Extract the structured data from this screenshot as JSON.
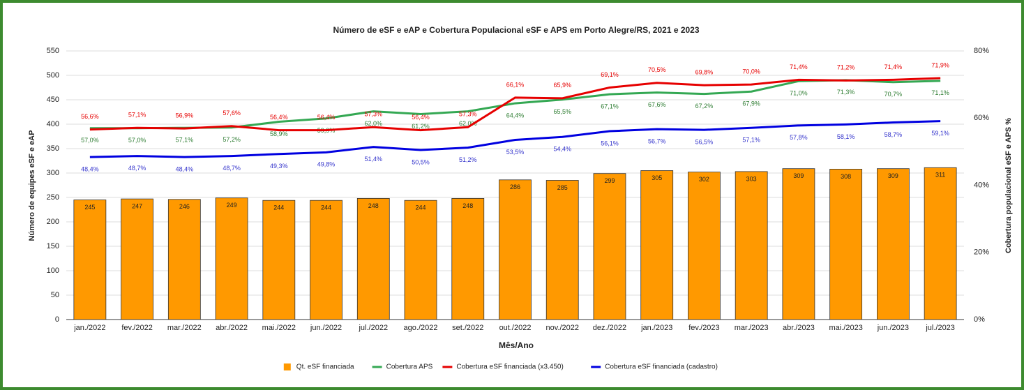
{
  "chart_data": {
    "type": "combo",
    "title": "Número de eSF e eAP e Cobertura Populacional eSF e APS em Porto Alegre/RS, 2021 e 2023",
    "x_label": "Mês/Ano",
    "y_label": "Número de equipes eSF e eAP",
    "y2_label": "Cobertura populacional eSF e APS %",
    "categories": [
      "jan./2022",
      "fev./2022",
      "mar./2022",
      "abr./2022",
      "mai./2022",
      "jun./2022",
      "jul./2022",
      "ago./2022",
      "set./2022",
      "out./2022",
      "nov./2022",
      "dez./2022",
      "jan./2023",
      "fev./2023",
      "mar./2023",
      "abr./2023",
      "mai./2023",
      "jun./2023",
      "jul./2023"
    ],
    "ylim": [
      0,
      550
    ],
    "yticks": [
      0,
      50,
      100,
      150,
      200,
      250,
      300,
      350,
      400,
      450,
      500,
      550
    ],
    "y2lim": [
      0,
      80
    ],
    "y2ticks": [
      {
        "value": 0,
        "label": "0%"
      },
      {
        "value": 20,
        "label": "20%"
      },
      {
        "value": 40,
        "label": "40%"
      },
      {
        "value": 60,
        "label": "60%"
      },
      {
        "value": 80,
        "label": "80%"
      }
    ],
    "grid": true,
    "legend": "bottom",
    "series": [
      {
        "name": "Qt. eSF financiada",
        "type": "bar",
        "color": "#ff9900",
        "values": [
          245,
          247,
          246,
          249,
          244,
          244,
          248,
          244,
          248,
          286,
          285,
          299,
          305,
          302,
          303,
          309,
          308,
          309,
          311
        ]
      },
      {
        "name": "Cobertura APS",
        "type": "line",
        "axis": "y2",
        "color": "#34a853",
        "values": [
          57.0,
          57.0,
          57.1,
          57.2,
          58.9,
          59.9,
          62.0,
          61.2,
          62.0,
          64.4,
          65.5,
          67.1,
          67.6,
          67.2,
          67.9,
          71.0,
          71.3,
          70.7,
          71.1
        ],
        "value_labels": [
          "57,0%",
          "57,0%",
          "57,1%",
          "57,2%",
          "58,9%",
          "59,9%",
          "62,0%",
          "61,2%",
          "62,0%",
          "64,4%",
          "65,5%",
          "67,1%",
          "67,6%",
          "67,2%",
          "67,9%",
          "71,0%",
          "71,3%",
          "70,7%",
          "71,1%"
        ]
      },
      {
        "name": "Cobertura eSF financiada (x3.450)",
        "type": "line",
        "axis": "y2",
        "color": "#e60000",
        "values": [
          56.6,
          57.1,
          56.9,
          57.6,
          56.4,
          56.4,
          57.3,
          56.4,
          57.3,
          66.1,
          65.9,
          69.1,
          70.5,
          69.8,
          70.0,
          71.4,
          71.2,
          71.4,
          71.9
        ],
        "value_labels": [
          "56,6%",
          "57,1%",
          "56,9%",
          "57,6%",
          "56,4%",
          "56,4%",
          "57,3%",
          "56,4%",
          "57,3%",
          "66,1%",
          "65,9%",
          "69,1%",
          "70,5%",
          "69,8%",
          "70,0%",
          "71,4%",
          "71,2%",
          "71,4%",
          "71,9%"
        ]
      },
      {
        "name": "Cobertura eSF financiada (cadastro)",
        "type": "line",
        "axis": "y2",
        "color": "#0000e0",
        "values": [
          48.4,
          48.7,
          48.4,
          48.7,
          49.3,
          49.8,
          51.4,
          50.5,
          51.2,
          53.5,
          54.4,
          56.1,
          56.7,
          56.5,
          57.1,
          57.8,
          58.1,
          58.7,
          59.1
        ],
        "value_labels": [
          "48,4%",
          "48,7%",
          "48,4%",
          "48,7%",
          "49,3%",
          "49,8%",
          "51,4%",
          "50,5%",
          "51,2%",
          "53,5%",
          "54,4%",
          "56,1%",
          "56,7%",
          "56,5%",
          "57,1%",
          "57,8%",
          "58,1%",
          "58,7%",
          "59,1%"
        ]
      }
    ]
  }
}
